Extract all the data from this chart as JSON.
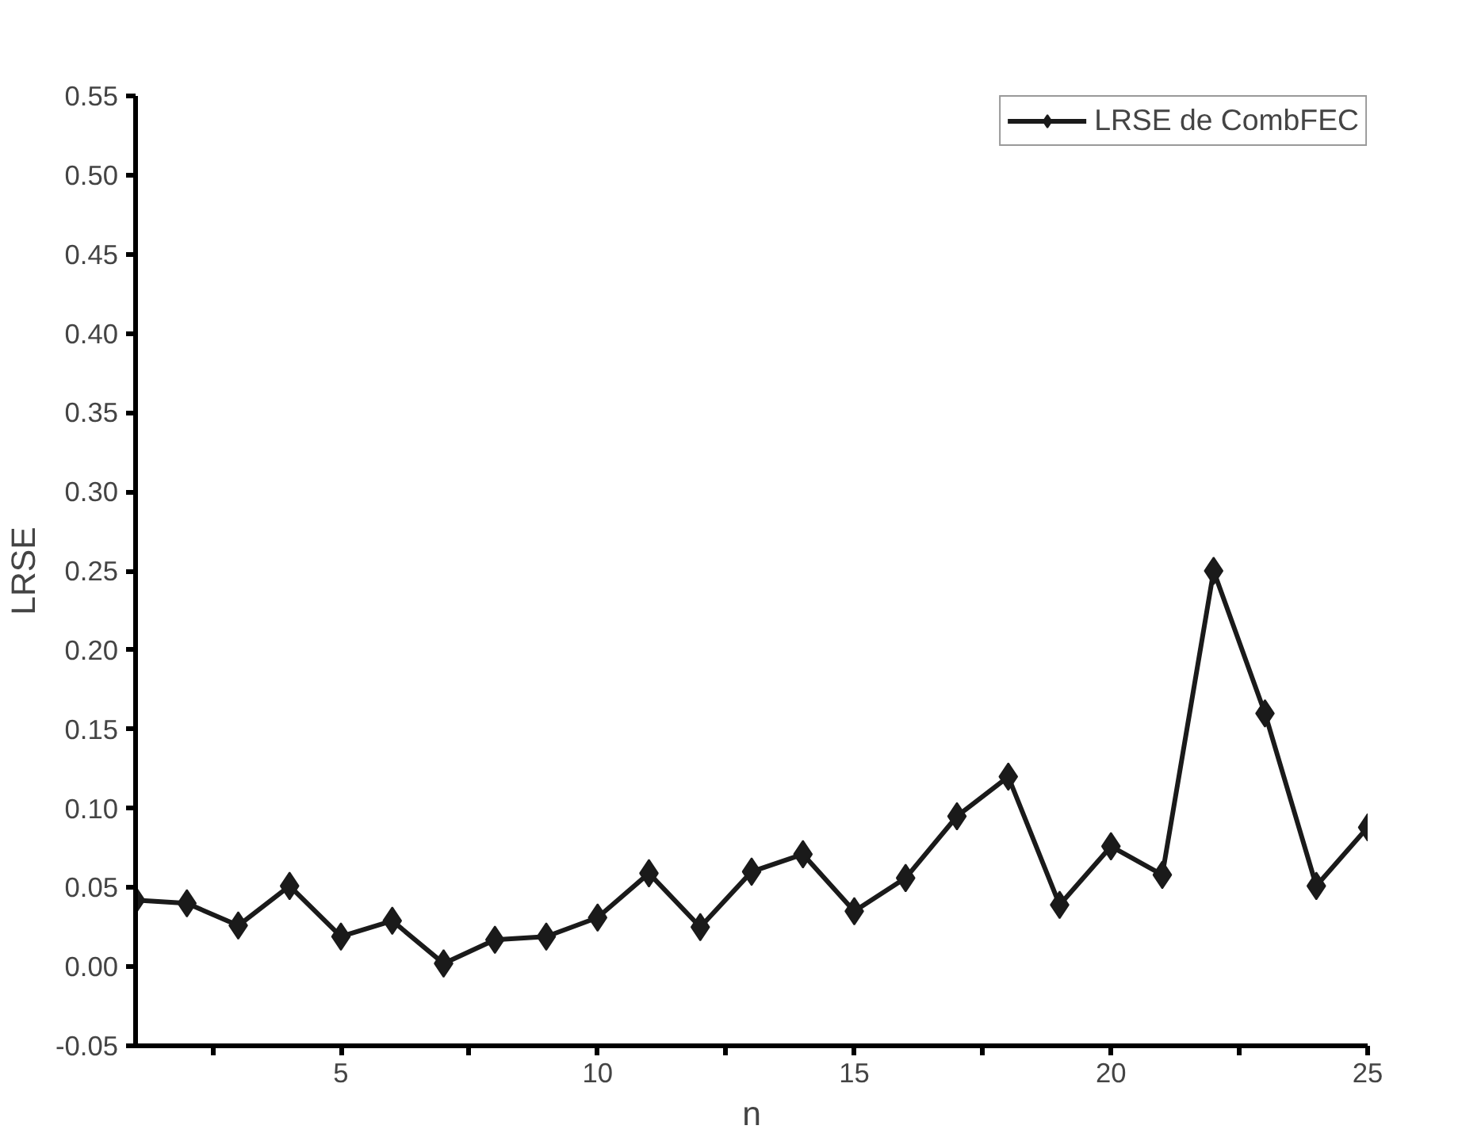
{
  "chart_data": {
    "type": "line",
    "xlabel": "n",
    "ylabel": "LRSE",
    "x": [
      1,
      2,
      3,
      4,
      5,
      6,
      7,
      8,
      9,
      10,
      11,
      12,
      13,
      14,
      15,
      16,
      17,
      18,
      19,
      20,
      21,
      22,
      23,
      24,
      25
    ],
    "series": [
      {
        "name": "LRSE de CombFEC",
        "color": "#1a1a1a",
        "values": [
          0.042,
          0.04,
          0.026,
          0.051,
          0.019,
          0.029,
          0.002,
          0.017,
          0.019,
          0.031,
          0.059,
          0.025,
          0.06,
          0.071,
          0.035,
          0.056,
          0.095,
          0.12,
          0.039,
          0.076,
          0.058,
          0.25,
          0.16,
          0.051,
          0.088
        ]
      }
    ],
    "xlim": [
      1,
      25
    ],
    "xticks": [
      {
        "value": 2.5,
        "label": null
      },
      5,
      {
        "value": 7.5,
        "label": null
      },
      10,
      {
        "value": 12.5,
        "label": null
      },
      15,
      {
        "value": 17.5,
        "label": null
      },
      20,
      {
        "value": 22.5,
        "label": null
      },
      25
    ],
    "ylim": [
      -0.05,
      0.55
    ],
    "yticks": [
      -0.05,
      {
        "value": 0,
        "label": "0.00"
      },
      0.05,
      {
        "value": 0.1,
        "label": "0.10"
      },
      0.15,
      {
        "value": 0.2,
        "label": "0.20"
      },
      0.25,
      {
        "value": 0.3,
        "label": "0.30"
      },
      0.35,
      {
        "value": 0.4,
        "label": "0.40"
      },
      0.45,
      {
        "value": 0.5,
        "label": "0.50"
      },
      0.55
    ],
    "marker": "diamond",
    "line_style": "solid",
    "grid": false,
    "legend": "top right"
  }
}
